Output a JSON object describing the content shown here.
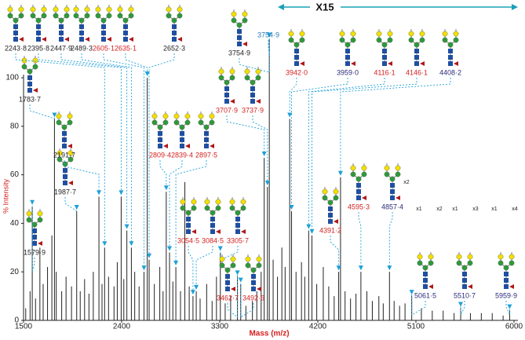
{
  "chart_data": {
    "type": "stick",
    "x_label": "Mass (m/z)",
    "y_label": "% Intensity",
    "zoom_label": "X15",
    "xlim": [
      1500,
      6000
    ],
    "xticks": [
      1500,
      2400,
      3300,
      4200,
      5100,
      6000
    ],
    "ylim": [
      0,
      100
    ],
    "yticks": [
      0,
      20,
      40,
      60,
      80,
      100
    ],
    "color": "#222222",
    "x": [
      1520,
      1560,
      1579.9,
      1610,
      1650,
      1680,
      1720,
      1760,
      1783.7,
      1800,
      1850,
      1890,
      1940,
      1987.7,
      2020,
      2060,
      2100,
      2140,
      2191.7,
      2220,
      2243.8,
      2280,
      2330,
      2360,
      2395.8,
      2420,
      2447.9,
      2489.3,
      2520,
      2560,
      2605.1,
      2635.1,
      2652.3,
      2700,
      2750,
      2780,
      2809.4,
      2839.4,
      2870,
      2897.5,
      2940,
      2980,
      3020,
      3054.5,
      3084.5,
      3120,
      3180,
      3230,
      3270,
      3305.7,
      3350,
      3400,
      3462.7,
      3492.6,
      3540,
      3600,
      3640,
      3680,
      3707.9,
      3737.9,
      3754.9,
      3790,
      3830,
      3870,
      3900,
      3942.0,
      3959.0,
      4000,
      4050,
      4080,
      4116.1,
      4146.1,
      4190,
      4250,
      4300,
      4350,
      4391.2,
      4408.2,
      4450,
      4500,
      4550,
      4595.3,
      4650,
      4700,
      4760,
      4800,
      4857.4,
      4900,
      4950,
      5000,
      5061.5,
      5150,
      5250,
      5350,
      5450,
      5510.7,
      5600,
      5700,
      5800,
      5900,
      5959.9
    ],
    "values": [
      5,
      12,
      47,
      9,
      30,
      15,
      22,
      35,
      83,
      20,
      12,
      18,
      14,
      45,
      12,
      17,
      11,
      20,
      51,
      15,
      30,
      18,
      14,
      24,
      51,
      17,
      37,
      30,
      20,
      14,
      20,
      100,
      25,
      15,
      22,
      12,
      53,
      28,
      16,
      22,
      12,
      57,
      14,
      10,
      12,
      9,
      15,
      8,
      18,
      28,
      7,
      10,
      18,
      15,
      6,
      8,
      12,
      20,
      67,
      55,
      116,
      25,
      18,
      30,
      22,
      83,
      45,
      20,
      24,
      18,
      37,
      35,
      15,
      22,
      14,
      10,
      20,
      59,
      12,
      9,
      11,
      20,
      12,
      8,
      10,
      7,
      20,
      8,
      6,
      7,
      10,
      5,
      4,
      4,
      3,
      5,
      3,
      3,
      3,
      2,
      4
    ],
    "annotations": [
      {
        "label": "1579·9",
        "x": 1579.9,
        "color": "#222222"
      },
      {
        "label": "1783·7",
        "x": 1783.7,
        "color": "#222222"
      },
      {
        "label": "1987·7",
        "x": 1987.7,
        "color": "#222222"
      },
      {
        "label": "2191·7",
        "x": 2191.7,
        "color": "#222222"
      },
      {
        "label": "2243·8",
        "x": 2243.8,
        "color": "#222222"
      },
      {
        "label": "2395·8",
        "x": 2395.8,
        "color": "#222222"
      },
      {
        "label": "2447·9",
        "x": 2447.9,
        "color": "#222222"
      },
      {
        "label": "2489·3",
        "x": 2489.3,
        "color": "#222222"
      },
      {
        "label": "2605·1",
        "x": 2605.1,
        "color": "#d42020"
      },
      {
        "label": "2635·1",
        "x": 2635.1,
        "color": "#d42020"
      },
      {
        "label": "2652·3",
        "x": 2652.3,
        "color": "#222222"
      },
      {
        "label": "2809·4",
        "x": 2809.4,
        "color": "#d42020"
      },
      {
        "label": "2839·4",
        "x": 2839.4,
        "color": "#d42020"
      },
      {
        "label": "2897·5",
        "x": 2897.5,
        "color": "#d42020"
      },
      {
        "label": "3054·5",
        "x": 3054.5,
        "color": "#d42020"
      },
      {
        "label": "3084·5",
        "x": 3084.5,
        "color": "#d42020"
      },
      {
        "label": "3305·7",
        "x": 3305.7,
        "color": "#d42020"
      },
      {
        "label": "3462·7",
        "x": 3462.7,
        "color": "#d42020"
      },
      {
        "label": "3492·6",
        "x": 3492.6,
        "color": "#d42020"
      },
      {
        "label": "3707·9",
        "x": 3707.9,
        "color": "#d42020"
      },
      {
        "label": "3737·9",
        "x": 3737.9,
        "color": "#d42020"
      },
      {
        "label": "3754·9",
        "x": 3754.9,
        "color": "#222222"
      },
      {
        "label": "3754·9",
        "x": 3754.9,
        "color": "#2a7ab8"
      },
      {
        "label": "3942·0",
        "x": 3942.0,
        "color": "#d42020"
      },
      {
        "label": "3959·0",
        "x": 3959.0,
        "color": "#2a2a7a"
      },
      {
        "label": "4116·1",
        "x": 4116.1,
        "color": "#d42020"
      },
      {
        "label": "4146·1",
        "x": 4146.1,
        "color": "#d42020"
      },
      {
        "label": "4408·2",
        "x": 4408.2,
        "color": "#2a2a7a"
      },
      {
        "label": "4391·2",
        "x": 4391.2,
        "color": "#d42020"
      },
      {
        "label": "4595·3",
        "x": 4595.3,
        "color": "#d42020"
      },
      {
        "label": "4857·4",
        "x": 4857.4,
        "color": "#2a2a7a"
      },
      {
        "label": "5061·5",
        "x": 5061.5,
        "color": "#2a2a7a"
      },
      {
        "label": "5510·7",
        "x": 5510.7,
        "color": "#2a2a7a"
      },
      {
        "label": "5959·9",
        "x": 5959.9,
        "color": "#2a2a7a"
      }
    ],
    "repeat_notes": [
      "x2",
      "x1",
      "x2",
      "x1",
      "x3",
      "x1",
      "x4"
    ]
  }
}
